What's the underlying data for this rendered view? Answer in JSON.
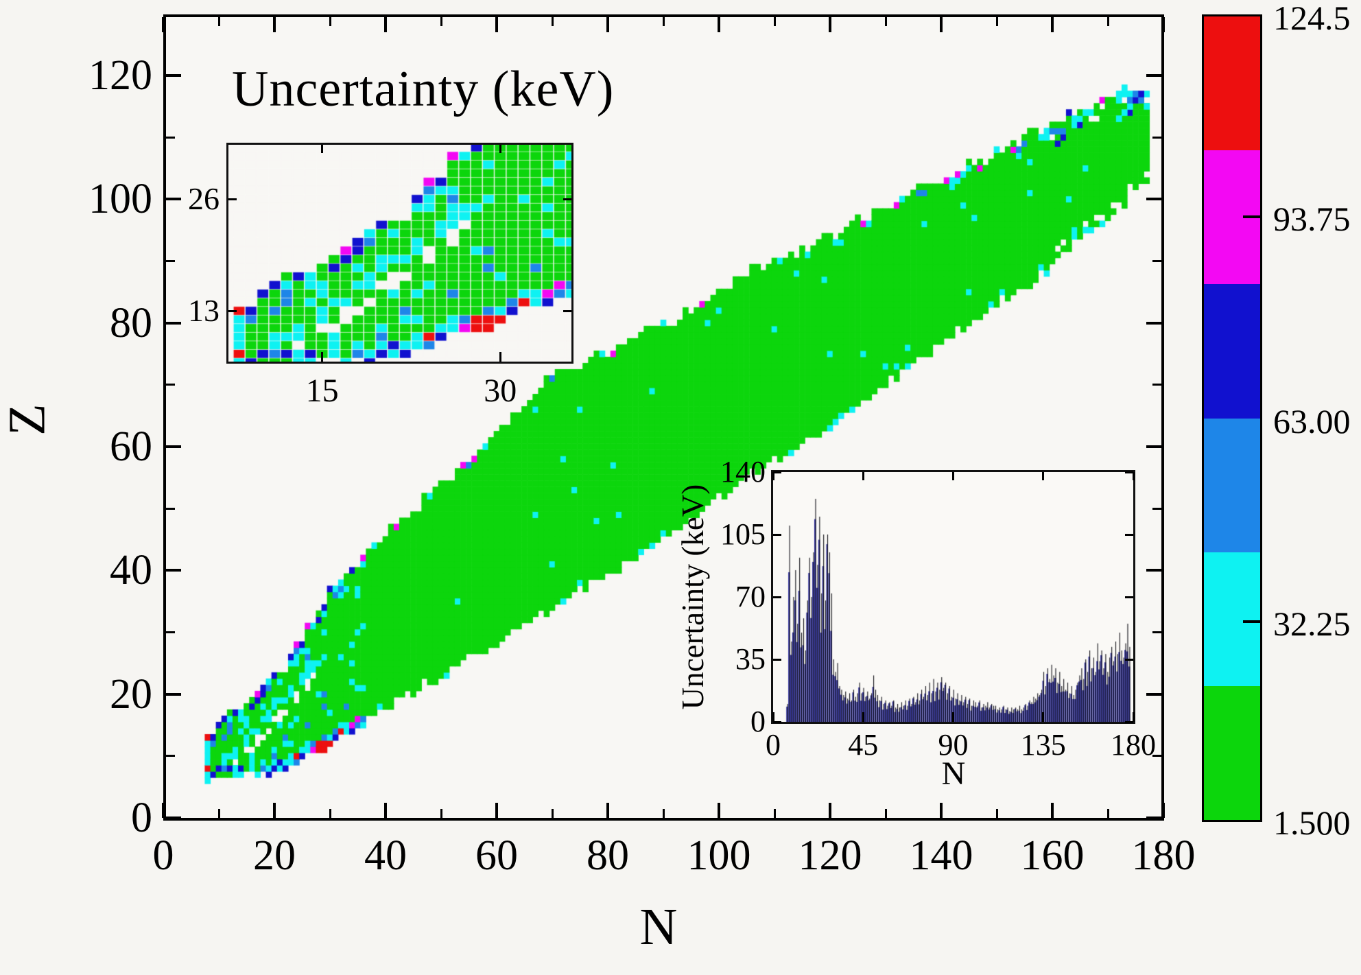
{
  "figure": {
    "bg": "#f6f5f2",
    "plot_bg": "#f8f7f4",
    "line_color": "#000000"
  },
  "title": "Uncertainty (keV)",
  "main_axes": {
    "xlabel": "N",
    "ylabel": "Z",
    "x_major_ticks": [
      0,
      20,
      40,
      60,
      80,
      100,
      120,
      140,
      160,
      180
    ],
    "x_minor_ticks": [
      10,
      30,
      50,
      70,
      90,
      110,
      130,
      150,
      170
    ],
    "y_major_ticks": [
      0,
      20,
      40,
      60,
      80,
      100,
      120
    ],
    "y_minor_ticks": [
      10,
      30,
      50,
      70,
      90,
      110
    ],
    "x_range": [
      0,
      179.2
    ],
    "y_range": [
      0,
      129.4
    ]
  },
  "colorbar": {
    "labels": [
      "124.5",
      "93.75",
      "63.00",
      "32.25",
      "1.500"
    ],
    "dash_at": [
      "93.75",
      "32.25"
    ],
    "segment_colors_top_to_bottom": [
      "#ed0f0f",
      "#f308f3",
      "#1111cf",
      "#1e86e8",
      "#0ef2f2",
      "#0cd60c"
    ]
  },
  "chart_data": [
    {
      "type": "heatmap",
      "name": "mass-uncertainty-chart-of-nuclides",
      "title": "Uncertainty (keV)",
      "xlabel": "N",
      "ylabel": "Z",
      "xlim": [
        0,
        180
      ],
      "ylim": [
        0,
        129.4
      ],
      "bin_edges_keV": [
        1.5,
        22.0,
        42.5,
        63.0,
        83.5,
        104.0,
        124.5
      ],
      "bin_colors": [
        "#0cd60c",
        "#0ef2f2",
        "#1e86e8",
        "#1111cf",
        "#f308f3",
        "#ed0f0f"
      ],
      "palette": {
        "green": "#0cd60c",
        "cyan": "#0ef2f2",
        "dodger": "#1e86e8",
        "blue": "#1111cf",
        "magenta": "#f308f3",
        "red": "#ed0f0f"
      },
      "n_range": [
        8,
        177
      ],
      "band_zmax": [
        [
          8,
          13
        ],
        [
          15,
          18
        ],
        [
          22,
          24
        ],
        [
          30,
          36
        ],
        [
          37,
          43
        ],
        [
          45,
          49
        ],
        [
          57,
          59
        ],
        [
          69,
          70
        ],
        [
          82,
          76
        ],
        [
          94,
          81
        ],
        [
          106,
          88
        ],
        [
          119,
          93
        ],
        [
          131,
          99
        ],
        [
          143,
          104
        ],
        [
          156,
          110
        ],
        [
          168,
          115
        ],
        [
          177,
          119
        ]
      ],
      "band_zmin": [
        [
          8,
          7
        ],
        [
          20,
          7
        ],
        [
          26,
          10
        ],
        [
          33,
          14
        ],
        [
          45,
          21
        ],
        [
          57,
          27
        ],
        [
          69,
          34
        ],
        [
          82,
          41
        ],
        [
          94,
          48
        ],
        [
          106,
          56
        ],
        [
          119,
          63
        ],
        [
          131,
          71
        ],
        [
          143,
          79
        ],
        [
          156,
          87
        ],
        [
          168,
          96
        ],
        [
          177,
          103
        ]
      ],
      "tip_cells": [
        [
          172,
          113,
          "cyan"
        ],
        [
          173,
          114,
          "cyan"
        ],
        [
          174,
          115,
          "cyan"
        ],
        [
          174,
          116,
          "dodger"
        ],
        [
          175,
          116,
          "blue"
        ],
        [
          175,
          117,
          "dodger"
        ],
        [
          176,
          116,
          "dodger"
        ],
        [
          176,
          117,
          "blue"
        ],
        [
          177,
          115,
          "cyan"
        ]
      ],
      "seed": 7
    },
    {
      "type": "heatmap_inset",
      "name": "low-mass-region-zoom",
      "x_ticks": [
        15,
        30
      ],
      "y_ticks": [
        13,
        26
      ],
      "xlim": [
        7.1,
        36.0
      ],
      "ylim": [
        7.1,
        32.3
      ]
    },
    {
      "type": "bar",
      "name": "uncertainty-vs-neutron-number",
      "xlabel": "N",
      "ylabel": "Uncertainty (keV)",
      "x_ticks": [
        0,
        45,
        90,
        135,
        180
      ],
      "y_ticks": [
        0,
        35,
        70,
        105,
        140
      ],
      "xlim": [
        0,
        180
      ],
      "ylim": [
        0,
        140
      ],
      "bar_color": "#2b2b9b",
      "line_color": "#101016",
      "start_n": 7,
      "values": [
        10,
        110,
        45,
        70,
        85,
        55,
        92,
        50,
        58,
        40,
        68,
        92,
        70,
        95,
        125,
        88,
        115,
        72,
        105,
        68,
        105,
        95,
        72,
        35,
        28,
        33,
        20,
        18,
        15,
        17,
        13,
        16,
        12,
        18,
        14,
        16,
        22,
        16,
        19,
        14,
        17,
        13,
        16,
        26,
        18,
        15,
        12,
        14,
        10,
        12,
        9,
        11,
        9,
        12,
        8,
        10,
        8,
        11,
        9,
        12,
        9,
        13,
        10,
        14,
        11,
        16,
        12,
        18,
        14,
        20,
        15,
        22,
        16,
        24,
        17,
        22,
        18,
        25,
        19,
        22,
        16,
        20,
        14,
        18,
        13,
        16,
        12,
        15,
        11,
        14,
        10,
        13,
        9,
        12,
        11,
        9,
        12,
        8,
        10,
        9,
        11,
        8,
        10,
        9,
        9,
        7,
        8,
        7,
        9,
        7,
        8,
        6,
        8,
        7,
        8,
        7,
        9,
        7,
        8,
        10,
        9,
        12,
        11,
        14,
        13,
        16,
        15,
        18,
        28,
        20,
        30,
        24,
        32,
        26,
        30,
        22,
        28,
        20,
        24,
        18,
        22,
        16,
        20,
        15,
        18,
        22,
        26,
        30,
        24,
        35,
        28,
        40,
        30,
        36,
        28,
        44,
        34,
        40,
        30,
        38,
        28,
        36,
        42,
        34,
        45,
        38,
        50,
        40,
        36,
        44,
        55,
        42
      ]
    }
  ]
}
